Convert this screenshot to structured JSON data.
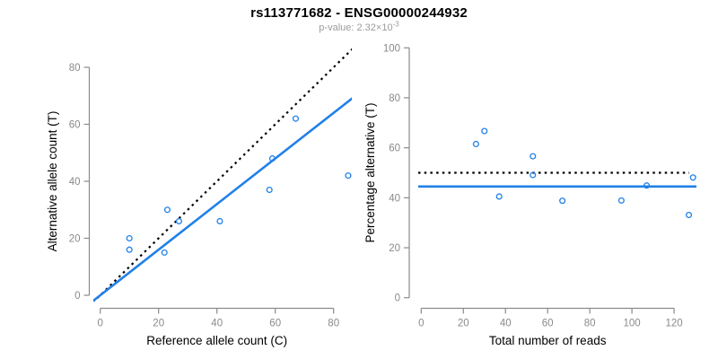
{
  "header": {
    "title": "rs113771682 - ENSG00000244932",
    "subtitle_base": "p-value: 2.32×10",
    "subtitle_exponent": "-3"
  },
  "colors": {
    "points": "#2080E8",
    "fit_line": "#2080E8",
    "reference_line": "#000000",
    "axis": "#8a8a8a",
    "tick_label": "#8a8a8a",
    "axis_title": "#000000",
    "title": "#000000",
    "subtitle": "#9b9b9b",
    "background": "#ffffff"
  },
  "chart_data": {
    "figure_title": "rs113771682 - ENSG00000244932",
    "figure_subtitle": "p-value: 2.32×10^-3",
    "panels": [
      {
        "type": "scatter",
        "title": "",
        "xlabel": "Reference allele count (C)",
        "ylabel": "Alternative allele count (T)",
        "xlim": [
          0,
          85
        ],
        "ylim": [
          0,
          85
        ],
        "xticks": [
          0,
          20,
          40,
          60,
          80
        ],
        "yticks": [
          0,
          20,
          40,
          60,
          80
        ],
        "grid": false,
        "legend": null,
        "points": [
          [
            10,
            20
          ],
          [
            10,
            16
          ],
          [
            22,
            15
          ],
          [
            23,
            30
          ],
          [
            27,
            26
          ],
          [
            41,
            26
          ],
          [
            58,
            37
          ],
          [
            59,
            48
          ],
          [
            67,
            62
          ],
          [
            85,
            42
          ]
        ],
        "lines": [
          {
            "label": "identity y=x",
            "style": "dotted",
            "slope": 1,
            "intercept": 0,
            "color": "#000000"
          },
          {
            "label": "fit y=0.80x",
            "style": "solid",
            "slope": 0.8,
            "intercept": 0,
            "color": "#2080E8"
          }
        ]
      },
      {
        "type": "scatter",
        "title": "",
        "xlabel": "Total number of reads",
        "ylabel": "Percentage alternative (T)",
        "xlim": [
          0,
          130
        ],
        "ylim": [
          0,
          100
        ],
        "xticks": [
          0,
          20,
          40,
          60,
          80,
          100,
          120
        ],
        "yticks": [
          0,
          20,
          40,
          60,
          80,
          100
        ],
        "grid": false,
        "legend": null,
        "points": [
          [
            30,
            66.7
          ],
          [
            26,
            61.5
          ],
          [
            37,
            40.5
          ],
          [
            53,
            56.6
          ],
          [
            53,
            49.1
          ],
          [
            67,
            38.8
          ],
          [
            95,
            38.9
          ],
          [
            107,
            44.9
          ],
          [
            129,
            48.1
          ],
          [
            127,
            33.1
          ]
        ],
        "lines": [
          {
            "label": "reference 50%",
            "style": "dotted",
            "y": 50,
            "color": "#000000"
          },
          {
            "label": "mean 44.5%",
            "style": "solid",
            "y": 44.5,
            "color": "#2080E8"
          }
        ]
      }
    ]
  }
}
